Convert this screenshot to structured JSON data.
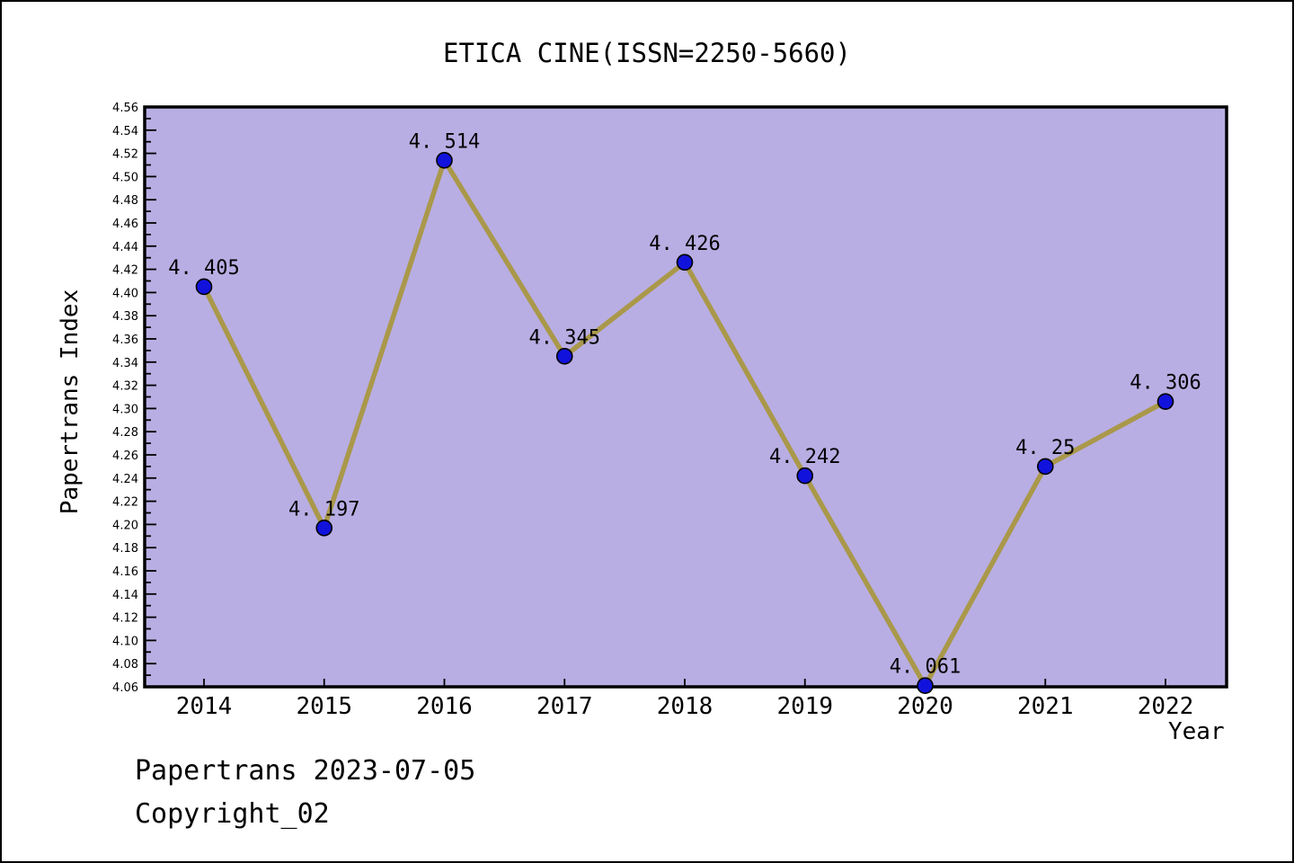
{
  "title": "ETICA CINE(ISSN=2250-5660)",
  "footer": {
    "source_line": "Papertrans 2023-07-05",
    "copyright_line": "Copyright_02"
  },
  "chart_data": {
    "type": "line",
    "x": [
      2014,
      2015,
      2016,
      2017,
      2018,
      2019,
      2020,
      2021,
      2022
    ],
    "values": [
      4.405,
      4.197,
      4.514,
      4.345,
      4.426,
      4.242,
      4.061,
      4.25,
      4.306
    ],
    "point_labels": [
      "4. 405",
      "4. 197",
      "4. 514",
      "4. 345",
      "4. 426",
      "4. 242",
      "4. 061",
      "4. 25",
      "4. 306"
    ],
    "xlabel": "Year",
    "ylabel": "Papertrans Index",
    "ylim": [
      4.06,
      4.56
    ],
    "ytick_major_step": 0.02,
    "ytick_minor_step": 0.01,
    "grid": false,
    "legend": false,
    "colors": {
      "plot_bg": "#b8aee3",
      "line": "#aa984a",
      "marker": "#1212dd",
      "marker_edge": "#000000",
      "frame": "#000000",
      "text": "#000000"
    }
  }
}
